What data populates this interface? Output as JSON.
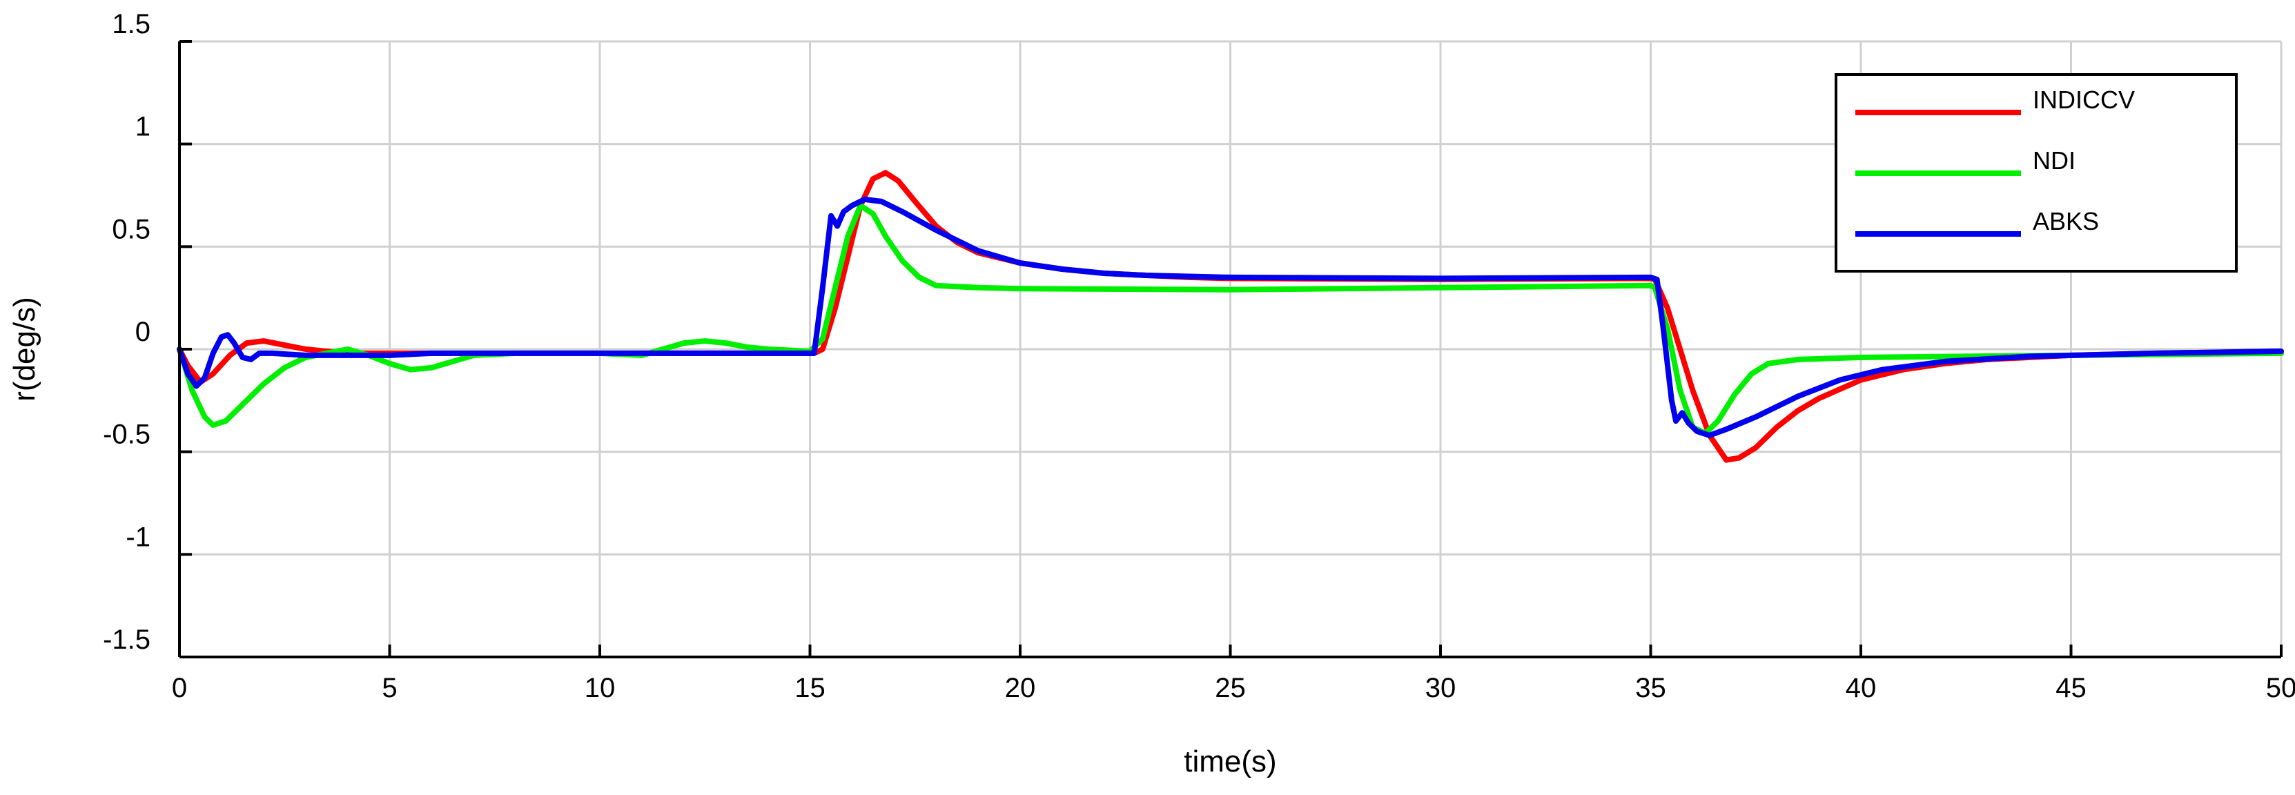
{
  "chart_data": {
    "type": "line",
    "title": "",
    "xlabel": "time(s)",
    "ylabel": "r(deg/s)",
    "xlim": [
      0,
      50
    ],
    "ylim": [
      -1.5,
      1.5
    ],
    "xticks": [
      0,
      5,
      10,
      15,
      20,
      25,
      30,
      35,
      40,
      45,
      50
    ],
    "yticks": [
      1.5,
      1,
      0.5,
      0,
      -0.5,
      -1,
      -1.5
    ],
    "xtick_labels": [
      "0",
      "5",
      "10",
      "15",
      "20",
      "25",
      "30",
      "35",
      "40",
      "45",
      "50"
    ],
    "ytick_labels": [
      "1.5",
      "1",
      "0.5",
      "0",
      "-0.5",
      "-1",
      "-1.5"
    ],
    "grid": true,
    "legend_position": "top-right",
    "series": [
      {
        "name": "INDICCV",
        "color": "#ff0000",
        "points": [
          [
            0,
            0
          ],
          [
            0.2,
            -0.08
          ],
          [
            0.5,
            -0.16
          ],
          [
            0.8,
            -0.12
          ],
          [
            1.2,
            -0.03
          ],
          [
            1.6,
            0.03
          ],
          [
            2,
            0.04
          ],
          [
            2.5,
            0.02
          ],
          [
            3,
            0
          ],
          [
            3.5,
            -0.01
          ],
          [
            4,
            -0.02
          ],
          [
            5,
            -0.02
          ],
          [
            6,
            -0.02
          ],
          [
            8,
            -0.02
          ],
          [
            10,
            -0.02
          ],
          [
            12,
            -0.02
          ],
          [
            14,
            -0.02
          ],
          [
            15.1,
            -0.02
          ],
          [
            15.3,
            0
          ],
          [
            15.6,
            0.2
          ],
          [
            15.9,
            0.45
          ],
          [
            16.2,
            0.7
          ],
          [
            16.5,
            0.83
          ],
          [
            16.8,
            0.86
          ],
          [
            17.1,
            0.82
          ],
          [
            17.5,
            0.72
          ],
          [
            18,
            0.6
          ],
          [
            18.5,
            0.52
          ],
          [
            19,
            0.47
          ],
          [
            20,
            0.42
          ],
          [
            21,
            0.39
          ],
          [
            22,
            0.37
          ],
          [
            23,
            0.36
          ],
          [
            24,
            0.35
          ],
          [
            25,
            0.345
          ],
          [
            30,
            0.34
          ],
          [
            35,
            0.345
          ],
          [
            35.1,
            0.34
          ],
          [
            35.4,
            0.2
          ],
          [
            35.7,
            0
          ],
          [
            36,
            -0.2
          ],
          [
            36.4,
            -0.42
          ],
          [
            36.8,
            -0.54
          ],
          [
            37.1,
            -0.53
          ],
          [
            37.5,
            -0.48
          ],
          [
            38,
            -0.38
          ],
          [
            38.5,
            -0.3
          ],
          [
            39,
            -0.24
          ],
          [
            40,
            -0.15
          ],
          [
            41,
            -0.1
          ],
          [
            42,
            -0.07
          ],
          [
            43,
            -0.05
          ],
          [
            45,
            -0.03
          ],
          [
            47,
            -0.02
          ],
          [
            50,
            -0.01
          ]
        ]
      },
      {
        "name": "NDI",
        "color": "#00ee00",
        "points": [
          [
            0,
            0
          ],
          [
            0.3,
            -0.2
          ],
          [
            0.6,
            -0.33
          ],
          [
            0.8,
            -0.37
          ],
          [
            1.1,
            -0.35
          ],
          [
            1.5,
            -0.27
          ],
          [
            2,
            -0.17
          ],
          [
            2.5,
            -0.09
          ],
          [
            3,
            -0.04
          ],
          [
            3.5,
            -0.02
          ],
          [
            4,
            0
          ],
          [
            4.5,
            -0.03
          ],
          [
            5,
            -0.07
          ],
          [
            5.5,
            -0.1
          ],
          [
            6,
            -0.09
          ],
          [
            6.5,
            -0.06
          ],
          [
            7,
            -0.03
          ],
          [
            8,
            -0.02
          ],
          [
            10,
            -0.02
          ],
          [
            11,
            -0.03
          ],
          [
            11.5,
            0
          ],
          [
            12,
            0.03
          ],
          [
            12.5,
            0.04
          ],
          [
            13,
            0.03
          ],
          [
            13.5,
            0.01
          ],
          [
            14,
            0
          ],
          [
            15,
            -0.01
          ],
          [
            15.3,
            0.05
          ],
          [
            15.6,
            0.3
          ],
          [
            15.9,
            0.55
          ],
          [
            16.2,
            0.7
          ],
          [
            16.5,
            0.66
          ],
          [
            16.8,
            0.55
          ],
          [
            17.2,
            0.43
          ],
          [
            17.6,
            0.35
          ],
          [
            18,
            0.31
          ],
          [
            19,
            0.3
          ],
          [
            20,
            0.295
          ],
          [
            25,
            0.29
          ],
          [
            30,
            0.3
          ],
          [
            35,
            0.31
          ],
          [
            35.1,
            0.3
          ],
          [
            35.4,
            0.1
          ],
          [
            35.7,
            -0.2
          ],
          [
            36,
            -0.38
          ],
          [
            36.3,
            -0.41
          ],
          [
            36.6,
            -0.35
          ],
          [
            37,
            -0.22
          ],
          [
            37.4,
            -0.12
          ],
          [
            37.8,
            -0.07
          ],
          [
            38.5,
            -0.05
          ],
          [
            40,
            -0.04
          ],
          [
            45,
            -0.03
          ],
          [
            50,
            -0.02
          ]
        ]
      },
      {
        "name": "ABKS",
        "color": "#0000ee",
        "points": [
          [
            0,
            0
          ],
          [
            0.2,
            -0.12
          ],
          [
            0.4,
            -0.18
          ],
          [
            0.6,
            -0.14
          ],
          [
            0.8,
            -0.02
          ],
          [
            1,
            0.06
          ],
          [
            1.15,
            0.07
          ],
          [
            1.3,
            0.03
          ],
          [
            1.5,
            -0.04
          ],
          [
            1.7,
            -0.05
          ],
          [
            1.9,
            -0.02
          ],
          [
            2.2,
            -0.02
          ],
          [
            3,
            -0.03
          ],
          [
            5,
            -0.03
          ],
          [
            6,
            -0.02
          ],
          [
            8,
            -0.02
          ],
          [
            10,
            -0.02
          ],
          [
            14,
            -0.02
          ],
          [
            15.1,
            -0.02
          ],
          [
            15.3,
            0.3
          ],
          [
            15.5,
            0.65
          ],
          [
            15.65,
            0.6
          ],
          [
            15.8,
            0.67
          ],
          [
            16,
            0.7
          ],
          [
            16.3,
            0.73
          ],
          [
            16.7,
            0.72
          ],
          [
            17.2,
            0.67
          ],
          [
            18,
            0.58
          ],
          [
            19,
            0.48
          ],
          [
            20,
            0.42
          ],
          [
            21,
            0.39
          ],
          [
            22,
            0.37
          ],
          [
            23,
            0.36
          ],
          [
            25,
            0.35
          ],
          [
            30,
            0.345
          ],
          [
            35,
            0.35
          ],
          [
            35.15,
            0.34
          ],
          [
            35.3,
            0.1
          ],
          [
            35.5,
            -0.25
          ],
          [
            35.6,
            -0.35
          ],
          [
            35.75,
            -0.31
          ],
          [
            35.9,
            -0.36
          ],
          [
            36.1,
            -0.4
          ],
          [
            36.4,
            -0.42
          ],
          [
            36.8,
            -0.39
          ],
          [
            37.5,
            -0.33
          ],
          [
            38.5,
            -0.23
          ],
          [
            39.5,
            -0.15
          ],
          [
            40.5,
            -0.1
          ],
          [
            42,
            -0.06
          ],
          [
            44,
            -0.035
          ],
          [
            47,
            -0.02
          ],
          [
            50,
            -0.01
          ]
        ]
      }
    ]
  }
}
